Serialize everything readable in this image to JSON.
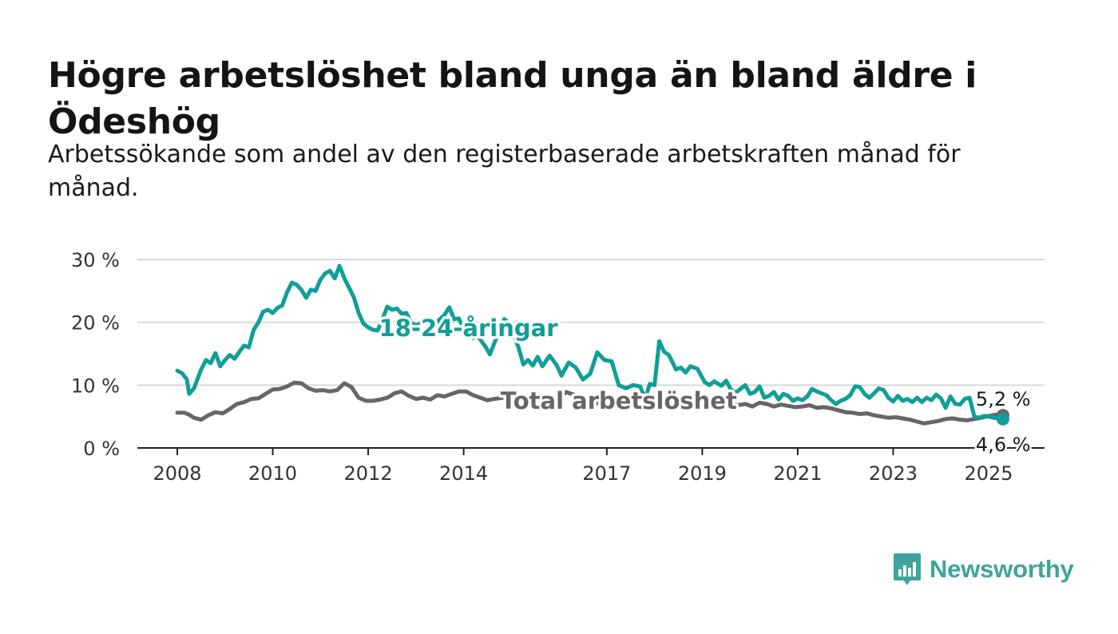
{
  "title": "Högre arbetslöshet bland unga än bland äldre i Ödeshög",
  "subtitle": "Arbetssökande som andel av den registerbaserade arbetskraften månad för månad.",
  "brand": {
    "name": "Newsworthy",
    "color": "#3fa39c",
    "icon": "bar-chart-speech-bubble-icon"
  },
  "colors": {
    "youth": "#109e98",
    "total": "#68656a",
    "grid": "#d9d9d9",
    "axis": "#222222"
  },
  "chart_data": {
    "type": "line",
    "x_unit": "year",
    "xlim": [
      2008,
      2025.5
    ],
    "ylim": [
      0,
      30
    ],
    "y_ticks": [
      {
        "value": 0,
        "label": "0 %"
      },
      {
        "value": 10,
        "label": "10 %"
      },
      {
        "value": 20,
        "label": "20 %"
      },
      {
        "value": 30,
        "label": "30 %"
      }
    ],
    "x_ticks": [
      {
        "value": 2008,
        "label": "2008"
      },
      {
        "value": 2010,
        "label": "2010"
      },
      {
        "value": 2012,
        "label": "2012"
      },
      {
        "value": 2014,
        "label": "2014"
      },
      {
        "value": 2017,
        "label": "2017"
      },
      {
        "value": 2019,
        "label": "2019"
      },
      {
        "value": 2021,
        "label": "2021"
      },
      {
        "value": 2023,
        "label": "2023"
      },
      {
        "value": 2025,
        "label": "2025"
      }
    ],
    "grid": true,
    "series": [
      {
        "name": "18-24-åringar",
        "color": "#109e98",
        "label_at": [
          2014.1,
          17.8
        ],
        "end_label": "4,6 %",
        "points": [
          [
            2008.0,
            12.3
          ],
          [
            2008.1,
            11.9
          ],
          [
            2008.2,
            10.9
          ],
          [
            2008.25,
            8.6
          ],
          [
            2008.35,
            9.5
          ],
          [
            2008.5,
            12.5
          ],
          [
            2008.6,
            14.0
          ],
          [
            2008.7,
            13.5
          ],
          [
            2008.8,
            15.1
          ],
          [
            2008.9,
            13.0
          ],
          [
            2009.0,
            14.0
          ],
          [
            2009.1,
            14.8
          ],
          [
            2009.2,
            14.2
          ],
          [
            2009.3,
            15.3
          ],
          [
            2009.4,
            16.3
          ],
          [
            2009.5,
            16.0
          ],
          [
            2009.6,
            18.8
          ],
          [
            2009.7,
            20.0
          ],
          [
            2009.8,
            21.7
          ],
          [
            2009.9,
            22.0
          ],
          [
            2010.0,
            21.5
          ],
          [
            2010.1,
            22.3
          ],
          [
            2010.2,
            22.7
          ],
          [
            2010.3,
            24.8
          ],
          [
            2010.4,
            26.3
          ],
          [
            2010.5,
            26.0
          ],
          [
            2010.6,
            25.2
          ],
          [
            2010.7,
            23.9
          ],
          [
            2010.8,
            25.2
          ],
          [
            2010.9,
            25.0
          ],
          [
            2011.0,
            26.8
          ],
          [
            2011.1,
            27.8
          ],
          [
            2011.2,
            28.2
          ],
          [
            2011.3,
            27.0
          ],
          [
            2011.4,
            29.0
          ],
          [
            2011.5,
            27.0
          ],
          [
            2011.6,
            25.5
          ],
          [
            2011.7,
            24.0
          ],
          [
            2011.8,
            21.5
          ],
          [
            2011.9,
            19.8
          ],
          [
            2012.0,
            19.2
          ],
          [
            2012.1,
            18.8
          ],
          [
            2012.2,
            18.7
          ],
          [
            2012.3,
            20.5
          ],
          [
            2012.4,
            22.5
          ],
          [
            2012.5,
            22.0
          ],
          [
            2012.6,
            22.2
          ],
          [
            2012.7,
            21.4
          ],
          [
            2012.8,
            21.5
          ],
          [
            2012.9,
            19.9
          ],
          [
            2013.0,
            19.5
          ],
          [
            2013.1,
            19.8
          ],
          [
            2013.2,
            20.0
          ],
          [
            2013.3,
            20.2
          ],
          [
            2013.45,
            20.1
          ],
          [
            2013.6,
            21.2
          ],
          [
            2013.7,
            22.4
          ],
          [
            2013.8,
            20.5
          ],
          [
            2013.9,
            20.6
          ],
          [
            2014.0,
            19.0
          ],
          [
            2014.1,
            18.4
          ],
          [
            2014.2,
            17.5
          ],
          [
            2014.3,
            17.8
          ],
          [
            2014.45,
            16.2
          ],
          [
            2014.55,
            14.9
          ],
          [
            2014.7,
            17.8
          ],
          [
            2014.85,
            20.5
          ],
          [
            2014.95,
            19.9
          ],
          [
            2015.05,
            18.0
          ],
          [
            2015.15,
            16.0
          ],
          [
            2015.25,
            13.3
          ],
          [
            2015.35,
            14.0
          ],
          [
            2015.45,
            13.1
          ],
          [
            2015.55,
            14.5
          ],
          [
            2015.65,
            13.0
          ],
          [
            2015.8,
            14.7
          ],
          [
            2015.95,
            13.2
          ],
          [
            2016.05,
            11.5
          ],
          [
            2016.2,
            13.6
          ],
          [
            2016.35,
            12.8
          ],
          [
            2016.5,
            10.9
          ],
          [
            2016.65,
            11.8
          ],
          [
            2016.8,
            15.2
          ],
          [
            2016.95,
            14.0
          ],
          [
            2017.1,
            13.8
          ],
          [
            2017.25,
            10.0
          ],
          [
            2017.4,
            9.5
          ],
          [
            2017.55,
            10.0
          ],
          [
            2017.7,
            9.8
          ],
          [
            2017.8,
            7.7
          ],
          [
            2017.9,
            10.2
          ],
          [
            2018.0,
            10.0
          ],
          [
            2018.1,
            17.0
          ],
          [
            2018.2,
            15.3
          ],
          [
            2018.3,
            14.8
          ],
          [
            2018.45,
            12.5
          ],
          [
            2018.55,
            12.8
          ],
          [
            2018.65,
            12.0
          ],
          [
            2018.75,
            13.0
          ],
          [
            2018.9,
            12.6
          ],
          [
            2019.05,
            10.5
          ],
          [
            2019.15,
            10.0
          ],
          [
            2019.25,
            10.6
          ],
          [
            2019.4,
            9.9
          ],
          [
            2019.5,
            10.7
          ],
          [
            2019.6,
            9.3
          ],
          [
            2019.7,
            8.8
          ],
          [
            2019.8,
            9.4
          ],
          [
            2019.9,
            10.0
          ],
          [
            2020.0,
            8.6
          ],
          [
            2020.1,
            8.9
          ],
          [
            2020.2,
            9.8
          ],
          [
            2020.3,
            8.0
          ],
          [
            2020.4,
            8.3
          ],
          [
            2020.5,
            8.9
          ],
          [
            2020.6,
            7.7
          ],
          [
            2020.7,
            8.6
          ],
          [
            2020.8,
            8.3
          ],
          [
            2020.9,
            7.5
          ],
          [
            2021.0,
            7.9
          ],
          [
            2021.1,
            7.6
          ],
          [
            2021.2,
            8.2
          ],
          [
            2021.3,
            9.4
          ],
          [
            2021.4,
            9.0
          ],
          [
            2021.5,
            8.7
          ],
          [
            2021.6,
            8.4
          ],
          [
            2021.7,
            7.6
          ],
          [
            2021.8,
            7.0
          ],
          [
            2021.9,
            7.5
          ],
          [
            2022.0,
            7.8
          ],
          [
            2022.1,
            8.4
          ],
          [
            2022.2,
            9.8
          ],
          [
            2022.3,
            9.7
          ],
          [
            2022.4,
            8.6
          ],
          [
            2022.5,
            8.0
          ],
          [
            2022.6,
            8.7
          ],
          [
            2022.7,
            9.5
          ],
          [
            2022.8,
            9.2
          ],
          [
            2022.9,
            8.0
          ],
          [
            2023.0,
            7.4
          ],
          [
            2023.1,
            8.3
          ],
          [
            2023.2,
            7.5
          ],
          [
            2023.3,
            7.8
          ],
          [
            2023.4,
            7.3
          ],
          [
            2023.5,
            8.0
          ],
          [
            2023.6,
            7.3
          ],
          [
            2023.7,
            8.0
          ],
          [
            2023.8,
            7.6
          ],
          [
            2023.9,
            8.5
          ],
          [
            2024.0,
            7.9
          ],
          [
            2024.1,
            6.4
          ],
          [
            2024.2,
            8.2
          ],
          [
            2024.3,
            7.0
          ],
          [
            2024.4,
            6.9
          ],
          [
            2024.5,
            7.8
          ],
          [
            2024.6,
            8.0
          ],
          [
            2024.7,
            5.0
          ],
          [
            2024.8,
            4.8
          ],
          [
            2024.9,
            5.1
          ],
          [
            2025.0,
            5.0
          ],
          [
            2025.1,
            4.8
          ],
          [
            2025.2,
            4.7
          ],
          [
            2025.3,
            4.6
          ]
        ]
      },
      {
        "name": "Total arbetslöshet",
        "color": "#68656a",
        "label_at": [
          2017.25,
          6.2
        ],
        "end_label": "5,2 %",
        "points": [
          [
            2008.0,
            5.6
          ],
          [
            2008.15,
            5.6
          ],
          [
            2008.25,
            5.3
          ],
          [
            2008.35,
            4.8
          ],
          [
            2008.5,
            4.5
          ],
          [
            2008.65,
            5.2
          ],
          [
            2008.8,
            5.7
          ],
          [
            2008.95,
            5.5
          ],
          [
            2009.1,
            6.2
          ],
          [
            2009.25,
            7.0
          ],
          [
            2009.4,
            7.3
          ],
          [
            2009.55,
            7.8
          ],
          [
            2009.7,
            7.9
          ],
          [
            2009.85,
            8.6
          ],
          [
            2010.0,
            9.3
          ],
          [
            2010.15,
            9.4
          ],
          [
            2010.3,
            9.8
          ],
          [
            2010.45,
            10.4
          ],
          [
            2010.6,
            10.3
          ],
          [
            2010.75,
            9.5
          ],
          [
            2010.9,
            9.1
          ],
          [
            2011.05,
            9.2
          ],
          [
            2011.2,
            9.0
          ],
          [
            2011.35,
            9.2
          ],
          [
            2011.5,
            10.3
          ],
          [
            2011.65,
            9.7
          ],
          [
            2011.8,
            8.0
          ],
          [
            2011.95,
            7.5
          ],
          [
            2012.1,
            7.5
          ],
          [
            2012.25,
            7.7
          ],
          [
            2012.4,
            8.0
          ],
          [
            2012.55,
            8.7
          ],
          [
            2012.7,
            9.0
          ],
          [
            2012.85,
            8.3
          ],
          [
            2013.0,
            7.8
          ],
          [
            2013.15,
            8.0
          ],
          [
            2013.3,
            7.7
          ],
          [
            2013.45,
            8.4
          ],
          [
            2013.6,
            8.2
          ],
          [
            2013.75,
            8.6
          ],
          [
            2013.9,
            9.0
          ],
          [
            2014.05,
            9.0
          ],
          [
            2014.2,
            8.4
          ],
          [
            2014.35,
            8.0
          ],
          [
            2014.5,
            7.6
          ],
          [
            2014.65,
            7.8
          ],
          [
            2014.8,
            8.0
          ],
          [
            2014.95,
            7.7
          ],
          [
            2015.1,
            8.2
          ],
          [
            2015.25,
            7.6
          ],
          [
            2015.4,
            7.3
          ],
          [
            2015.55,
            6.6
          ],
          [
            2015.7,
            7.1
          ],
          [
            2015.85,
            7.3
          ],
          [
            2016.0,
            8.0
          ],
          [
            2016.15,
            8.9
          ],
          [
            2016.3,
            8.5
          ],
          [
            2016.45,
            8.0
          ],
          [
            2016.6,
            7.3
          ],
          [
            2016.75,
            7.0
          ],
          [
            2016.9,
            7.5
          ],
          [
            2017.05,
            7.8
          ],
          [
            2017.2,
            7.8
          ],
          [
            2017.35,
            7.4
          ],
          [
            2017.5,
            6.7
          ],
          [
            2017.65,
            6.5
          ],
          [
            2017.8,
            6.7
          ],
          [
            2017.95,
            7.3
          ],
          [
            2018.1,
            7.8
          ],
          [
            2018.25,
            8.1
          ],
          [
            2018.4,
            8.4
          ],
          [
            2018.55,
            7.6
          ],
          [
            2018.7,
            7.3
          ],
          [
            2018.85,
            7.0
          ],
          [
            2019.0,
            7.6
          ],
          [
            2019.15,
            7.4
          ],
          [
            2019.3,
            7.2
          ],
          [
            2019.45,
            6.9
          ],
          [
            2019.6,
            7.1
          ],
          [
            2019.75,
            6.8
          ],
          [
            2019.9,
            7.0
          ],
          [
            2020.05,
            6.6
          ],
          [
            2020.2,
            7.2
          ],
          [
            2020.35,
            7.0
          ],
          [
            2020.5,
            6.6
          ],
          [
            2020.65,
            6.9
          ],
          [
            2020.8,
            6.7
          ],
          [
            2020.95,
            6.5
          ],
          [
            2021.1,
            6.6
          ],
          [
            2021.25,
            6.8
          ],
          [
            2021.4,
            6.4
          ],
          [
            2021.55,
            6.5
          ],
          [
            2021.7,
            6.3
          ],
          [
            2021.85,
            6.0
          ],
          [
            2022.0,
            5.7
          ],
          [
            2022.15,
            5.6
          ],
          [
            2022.3,
            5.4
          ],
          [
            2022.45,
            5.5
          ],
          [
            2022.6,
            5.2
          ],
          [
            2022.75,
            5.0
          ],
          [
            2022.9,
            4.8
          ],
          [
            2023.05,
            4.9
          ],
          [
            2023.2,
            4.7
          ],
          [
            2023.35,
            4.5
          ],
          [
            2023.5,
            4.2
          ],
          [
            2023.65,
            3.9
          ],
          [
            2023.8,
            4.1
          ],
          [
            2023.95,
            4.3
          ],
          [
            2024.1,
            4.6
          ],
          [
            2024.25,
            4.7
          ],
          [
            2024.4,
            4.5
          ],
          [
            2024.55,
            4.4
          ],
          [
            2024.7,
            4.6
          ],
          [
            2024.85,
            4.8
          ],
          [
            2025.0,
            5.1
          ],
          [
            2025.15,
            5.3
          ],
          [
            2025.3,
            5.2
          ]
        ]
      }
    ]
  }
}
